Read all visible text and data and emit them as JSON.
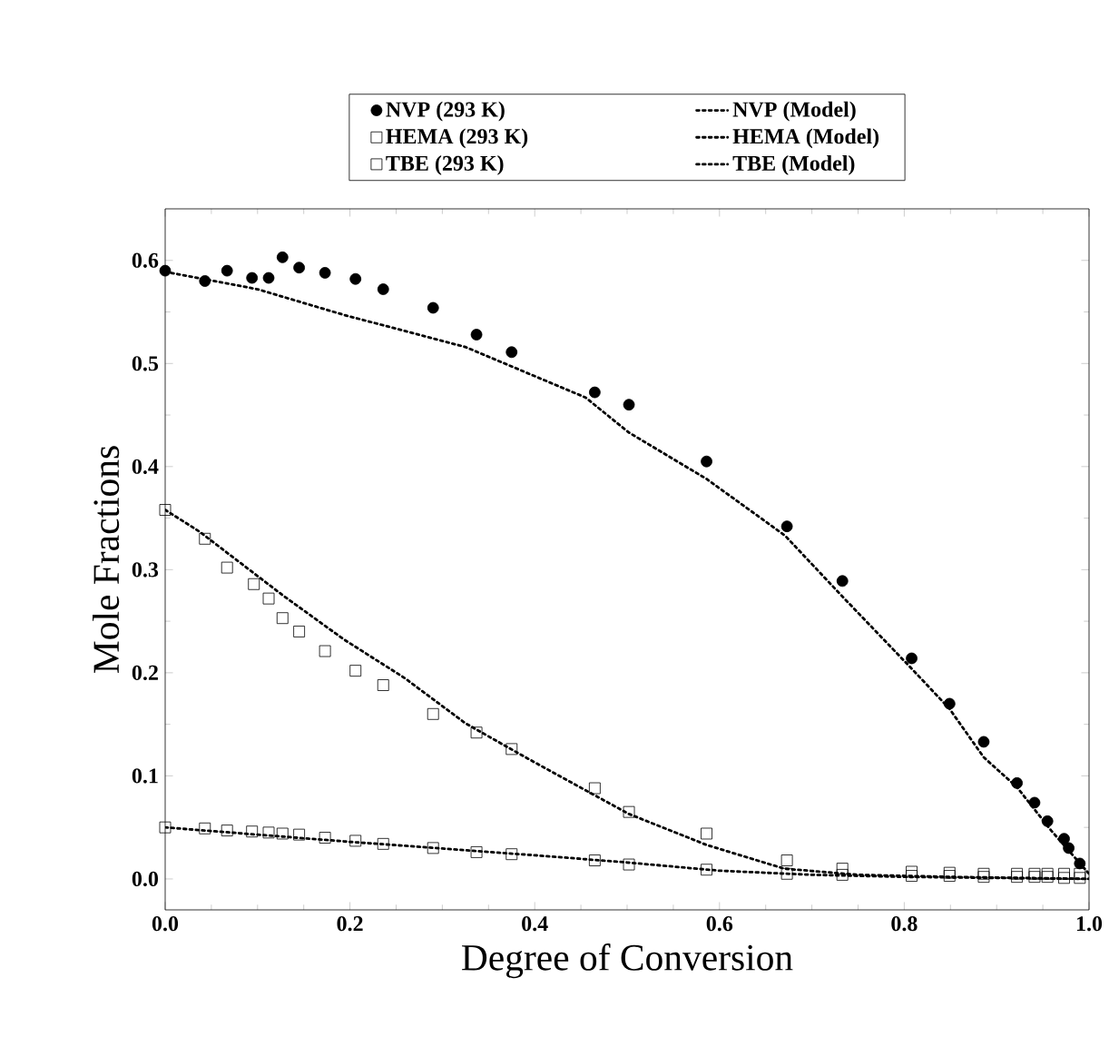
{
  "chart_data": {
    "type": "scatter",
    "xlabel": "Degree of Conversion",
    "ylabel": "Mole Fractions",
    "xlim": [
      0,
      1
    ],
    "ylim": [
      -0.03,
      0.65
    ],
    "xticks": [
      {
        "value": 0,
        "label": "0.0"
      },
      {
        "value": 0.2,
        "label": "0.2"
      },
      {
        "value": 0.4,
        "label": "0.4"
      },
      {
        "value": 0.6,
        "label": "0.6"
      },
      {
        "value": 0.8,
        "label": "0.8"
      },
      {
        "value": 1,
        "label": "1.0"
      }
    ],
    "yticks": [
      {
        "value": 0,
        "label": "0.0"
      },
      0.1,
      0.2,
      0.3,
      0.4,
      0.5,
      0.6
    ],
    "legend": "top",
    "grid": false,
    "series": [
      {
        "name": "NVP (293 K)",
        "color": "#000000",
        "marker": "circle",
        "x": [
          0,
          0.043,
          0.067,
          0.094,
          0.112,
          0.127,
          0.145,
          0.173,
          0.206,
          0.236,
          0.29,
          0.337,
          0.375,
          0.465,
          0.502,
          0.586,
          0.673,
          0.733,
          0.808,
          0.849,
          0.886,
          0.922,
          0.941,
          0.955,
          0.973,
          0.978,
          0.99
        ],
        "values": [
          0.59,
          0.58,
          0.59,
          0.583,
          0.583,
          0.603,
          0.593,
          0.588,
          0.582,
          0.572,
          0.554,
          0.528,
          0.511,
          0.472,
          0.46,
          0.405,
          0.342,
          0.289,
          0.214,
          0.17,
          0.133,
          0.093,
          0.074,
          0.056,
          0.039,
          0.03,
          0.015
        ]
      },
      {
        "name": "HEMA (293 K)",
        "color": "#000000",
        "marker": "square",
        "x": [
          0,
          0.043,
          0.067,
          0.096,
          0.112,
          0.127,
          0.145,
          0.173,
          0.206,
          0.236,
          0.29,
          0.337,
          0.375,
          0.465,
          0.502,
          0.586,
          0.673,
          0.733,
          0.808,
          0.849,
          0.886,
          0.922,
          0.941,
          0.955,
          0.973,
          0.99
        ],
        "values": [
          0.358,
          0.33,
          0.302,
          0.286,
          0.272,
          0.253,
          0.24,
          0.221,
          0.202,
          0.188,
          0.16,
          0.142,
          0.126,
          0.088,
          0.065,
          0.044,
          0.018,
          0.01,
          0.007,
          0.006,
          0.005,
          0.005,
          0.005,
          0.005,
          0.005,
          0.005
        ]
      },
      {
        "name": "TBE (293 K)",
        "color": "#000000",
        "marker": "square",
        "x": [
          0,
          0.043,
          0.067,
          0.094,
          0.112,
          0.127,
          0.145,
          0.173,
          0.206,
          0.236,
          0.29,
          0.337,
          0.375,
          0.465,
          0.502,
          0.586,
          0.673,
          0.733,
          0.808,
          0.849,
          0.886,
          0.922,
          0.941,
          0.955,
          0.973,
          0.99
        ],
        "values": [
          0.05,
          0.049,
          0.047,
          0.046,
          0.045,
          0.044,
          0.043,
          0.04,
          0.037,
          0.034,
          0.03,
          0.026,
          0.024,
          0.018,
          0.014,
          0.009,
          0.005,
          0.004,
          0.003,
          0.003,
          0.002,
          0.002,
          0.002,
          0.002,
          0.001,
          0.001
        ]
      },
      {
        "name": "NVP (Model)",
        "type": "line",
        "line_style": "dotted",
        "color": "#000000",
        "x": [
          0,
          0.1,
          0.194,
          0.325,
          0.455,
          0.502,
          0.586,
          0.671,
          0.733,
          0.808,
          0.849,
          0.886,
          0.922,
          0.959,
          1
        ],
        "values": [
          0.589,
          0.572,
          0.547,
          0.516,
          0.467,
          0.433,
          0.388,
          0.333,
          0.274,
          0.204,
          0.165,
          0.118,
          0.089,
          0.047,
          0.005
        ]
      },
      {
        "name": "HEMA (Model)",
        "type": "line",
        "line_style": "dotted",
        "color": "#000000",
        "x": [
          0,
          0.037,
          0.129,
          0.194,
          0.259,
          0.325,
          0.39,
          0.455,
          0.502,
          0.586,
          0.67,
          0.75,
          0.85,
          1
        ],
        "values": [
          0.358,
          0.337,
          0.274,
          0.232,
          0.195,
          0.151,
          0.118,
          0.086,
          0.063,
          0.033,
          0.01,
          0.004,
          0.002,
          0
        ]
      },
      {
        "name": "TBE (Model)",
        "type": "line",
        "line_style": "dotted",
        "color": "#000000",
        "x": [
          0,
          0.2,
          0.4,
          0.5,
          0.6,
          0.7,
          0.8,
          1
        ],
        "values": [
          0.05,
          0.036,
          0.023,
          0.016,
          0.008,
          0.004,
          0.002,
          0
        ]
      }
    ]
  }
}
